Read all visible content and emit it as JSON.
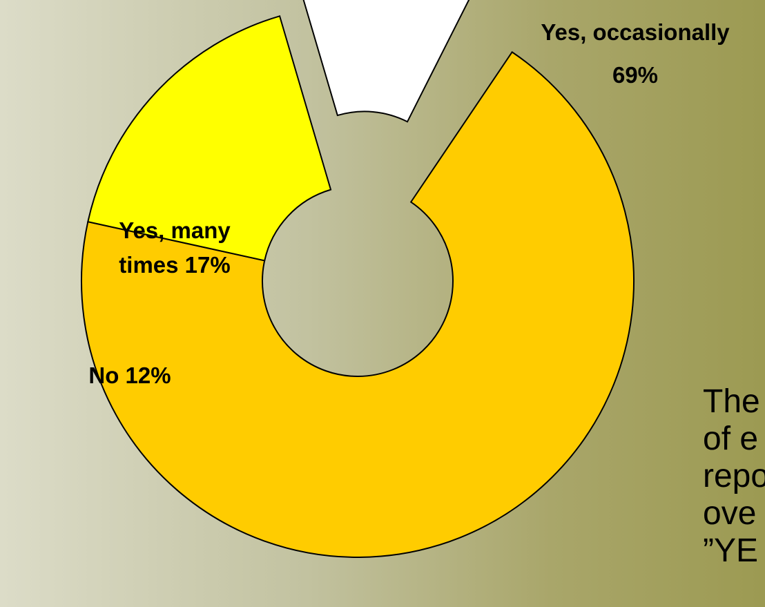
{
  "chart_data": {
    "type": "pie",
    "style": "exploded donut",
    "categories": [
      "Yes, occasionally",
      "Yes, many times",
      "No"
    ],
    "values": [
      69,
      17,
      12
    ],
    "colors": [
      "#ffcc00",
      "#ffff00",
      "#ffffff"
    ],
    "exploded": [
      "No"
    ],
    "labels": [
      [
        "Yes, occasionally",
        "69%"
      ],
      [
        "Yes, many",
        "times 17%"
      ],
      [
        "No 12%"
      ]
    ],
    "title": "",
    "legend": "none"
  },
  "side_text": {
    "lines": [
      "The",
      "of e",
      "repo",
      "ove",
      "”YE"
    ]
  },
  "colors": {
    "background_left": "#dcdcc8",
    "background_right": "#9c9a52",
    "outline": "#000000"
  }
}
